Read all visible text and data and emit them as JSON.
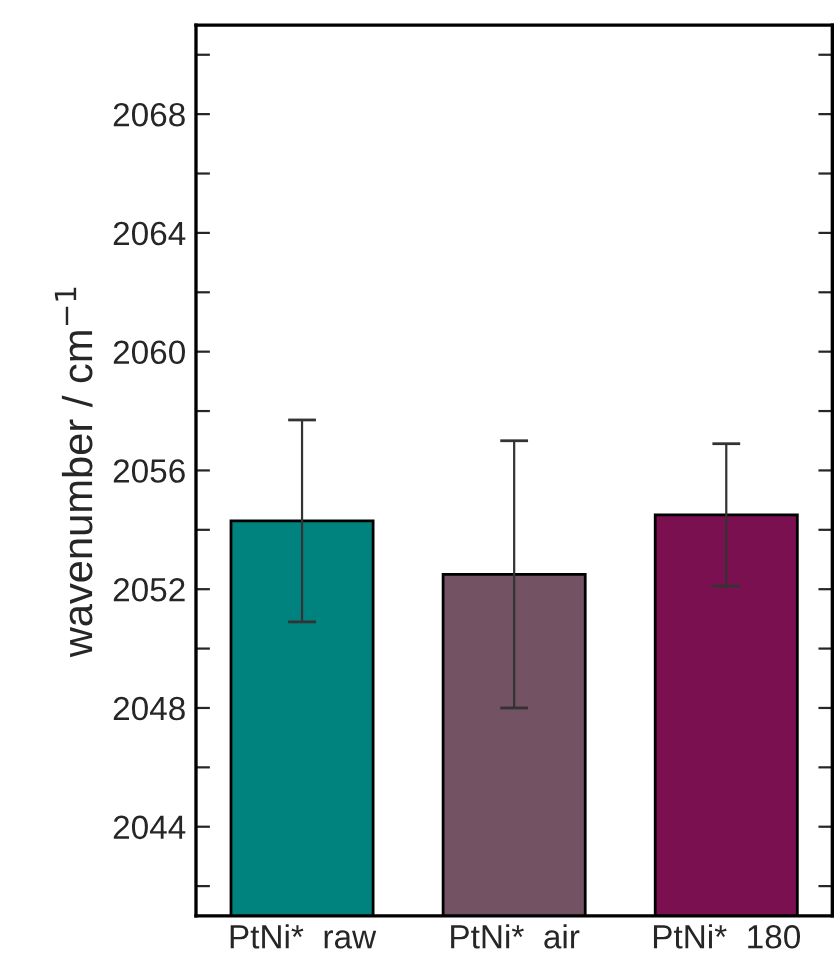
{
  "chart_data": {
    "type": "bar",
    "ylabel": "wavenumber / cm$^{−1}$",
    "categories": [
      "PtNi*  raw",
      "PtNi*  air",
      "PtNi*  180"
    ],
    "values": [
      2054.3,
      2052.5,
      2054.5
    ],
    "errors": [
      3.4,
      4.5,
      2.4
    ],
    "colors": [
      "#00827f",
      "#735363",
      "#7a1050"
    ],
    "ylim": [
      2041,
      2071
    ],
    "yticks": [
      {
        "value": 2042,
        "label": null
      },
      2044,
      {
        "value": 2046,
        "label": null
      },
      2048,
      {
        "value": 2050,
        "label": null
      },
      2052,
      {
        "value": 2054,
        "label": null
      },
      2056,
      {
        "value": 2058,
        "label": null
      },
      2060,
      {
        "value": 2062,
        "label": null
      },
      2064,
      {
        "value": 2066,
        "label": null
      },
      2068,
      {
        "value": 2070,
        "label": null
      }
    ],
    "grid": false,
    "legend": false
  }
}
